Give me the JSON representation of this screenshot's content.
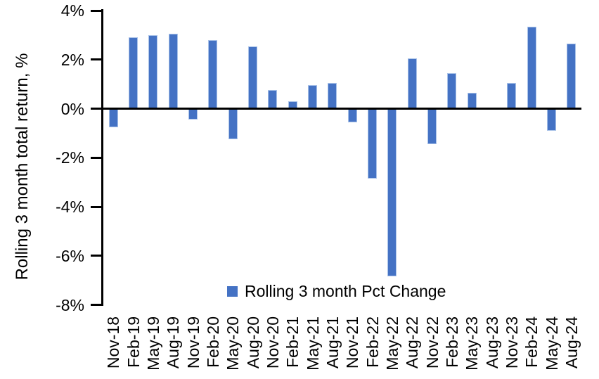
{
  "colors": {
    "bar_fill": "#4472C4",
    "bar_border": "#A9C2E8",
    "axis": "#000000",
    "text": "#000000",
    "background": "#FFFFFF"
  },
  "legend": {
    "label": "Rolling 3 month Pct Change",
    "swatch_color": "#4472C4"
  },
  "chart_data": {
    "type": "bar",
    "title": "",
    "xlabel": "",
    "ylabel": "Rolling 3 month total return, %",
    "ylim": [
      -8,
      4
    ],
    "ytick_values": [
      4,
      2,
      0,
      -2,
      -4,
      -6,
      -8
    ],
    "ytick_labels": [
      "4%",
      "2%",
      "0%",
      "-2%",
      "-4%",
      "-6%",
      "-8%"
    ],
    "grid": false,
    "legend_position": "bottom-center",
    "categories": [
      "Nov-18",
      "Feb-19",
      "May-19",
      "Aug-19",
      "Nov-19",
      "Feb-20",
      "May-20",
      "Aug-20",
      "Nov-20",
      "Feb-21",
      "May-21",
      "Aug-21",
      "Nov-21",
      "Feb-22",
      "May-22",
      "Aug-22",
      "Nov-22",
      "Feb-23",
      "May-23",
      "Aug-23",
      "Nov-23",
      "Feb-24",
      "May-24",
      "Aug-24"
    ],
    "series": [
      {
        "name": "Rolling 3 month Pct Change",
        "color": "#4472C4",
        "values": [
          -0.75,
          2.9,
          3.0,
          3.05,
          -0.45,
          2.8,
          -1.25,
          2.55,
          0.75,
          0.3,
          0.95,
          1.05,
          -0.55,
          -2.85,
          -6.85,
          2.05,
          -1.45,
          1.45,
          0.65,
          0.0,
          1.05,
          3.35,
          -0.9,
          2.65
        ]
      }
    ]
  }
}
